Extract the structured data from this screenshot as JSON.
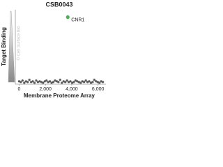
{
  "chart_data": {
    "type": "scatter",
    "title": "CSB0043",
    "xlabel": "Membrane Proteome Array",
    "ylabel": "Target Binding",
    "watermark": "© Cell Surface Bio",
    "xlim": [
      -500,
      6600
    ],
    "ylim": [
      0,
      100
    ],
    "xticks": [
      0,
      {
        "value": 2000,
        "label": "2,000"
      },
      {
        "value": 4000,
        "label": "4,000"
      },
      {
        "value": 6000,
        "label": "6,000"
      }
    ],
    "series": [
      {
        "color": "#5a5a5a",
        "x": [
          0,
          130,
          260,
          390,
          520,
          650,
          780,
          910,
          1040,
          1170,
          1300,
          1430,
          1560,
          1690,
          1820,
          1950,
          2080,
          2210,
          2340,
          2470,
          2600,
          2730,
          2860,
          2990,
          3120,
          3250,
          3380,
          3510,
          3640,
          3770,
          3900,
          4030,
          4160,
          4290,
          4420,
          4550,
          4680,
          4810,
          4940,
          5070,
          5200,
          5330,
          5460,
          5590,
          5720,
          5850,
          5980,
          6110,
          6240,
          6370
        ],
        "values": [
          3,
          2,
          4,
          1,
          3,
          2,
          5,
          2,
          3,
          1,
          4,
          2,
          3,
          2,
          1,
          3,
          4,
          2,
          3,
          1,
          2,
          4,
          3,
          2,
          5,
          1,
          3,
          2,
          4,
          2,
          3,
          1,
          2,
          4,
          3,
          2,
          1,
          3,
          2,
          4,
          2,
          3,
          1,
          2,
          5,
          3,
          2,
          1,
          3,
          2
        ]
      },
      {
        "name": "CNR1",
        "color": "#4caf50",
        "x": [
          3700
        ],
        "values": [
          90
        ]
      }
    ]
  }
}
